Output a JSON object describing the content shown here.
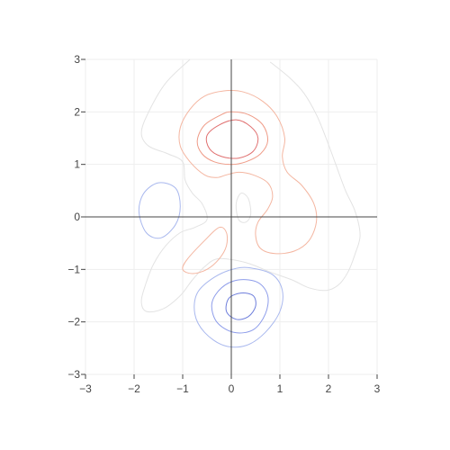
{
  "chart_data": {
    "type": "contour",
    "title": "",
    "xlabel": "",
    "ylabel": "",
    "xlim": [
      -3,
      3
    ],
    "ylim": [
      -3,
      3
    ],
    "grid": true,
    "legend": "none",
    "axes_lines": "zero lines drawn at x=0 and y=0",
    "x_ticks": [
      -3,
      -2,
      -1,
      0,
      1,
      2,
      3
    ],
    "y_ticks": [
      -3,
      -2,
      -1,
      0,
      1,
      2,
      3
    ],
    "x_tick_labels": [
      "−3",
      "−2",
      "−1",
      "0",
      "1",
      "2",
      "3"
    ],
    "y_tick_labels": [
      "−3",
      "−2",
      "−1",
      "0",
      "1",
      "2",
      "3"
    ],
    "contours": [
      {
        "name": "outer-neutral-contour",
        "color": "#e3e3e3",
        "points": [
          [
            -0.85,
            3.0
          ],
          [
            -1.35,
            2.55
          ],
          [
            -1.7,
            2.0
          ],
          [
            -1.85,
            1.6
          ],
          [
            -1.7,
            1.35
          ],
          [
            -1.3,
            1.2
          ],
          [
            -1.0,
            1.05
          ],
          [
            -0.95,
            0.7
          ],
          [
            -0.8,
            0.45
          ],
          [
            -0.6,
            0.25
          ],
          [
            -0.5,
            -0.05
          ],
          [
            -0.75,
            -0.2
          ],
          [
            -1.05,
            -0.3
          ],
          [
            -1.35,
            -0.55
          ],
          [
            -1.6,
            -0.9
          ],
          [
            -1.75,
            -1.25
          ],
          [
            -1.85,
            -1.6
          ],
          [
            -1.75,
            -1.8
          ],
          [
            -1.4,
            -1.75
          ],
          [
            -1.05,
            -1.5
          ],
          [
            -0.8,
            -1.2
          ],
          [
            -0.55,
            -0.95
          ],
          [
            -0.3,
            -0.8
          ],
          [
            0.05,
            -0.82
          ],
          [
            0.4,
            -0.9
          ],
          [
            0.8,
            -1.05
          ],
          [
            1.25,
            -1.2
          ],
          [
            1.6,
            -1.35
          ],
          [
            1.95,
            -1.4
          ],
          [
            2.2,
            -1.3
          ],
          [
            2.4,
            -1.05
          ],
          [
            2.55,
            -0.7
          ],
          [
            2.65,
            -0.35
          ],
          [
            2.55,
            0.1
          ],
          [
            2.35,
            0.5
          ],
          [
            2.15,
            1.0
          ],
          [
            1.95,
            1.5
          ],
          [
            1.75,
            1.95
          ],
          [
            1.5,
            2.35
          ],
          [
            1.2,
            2.65
          ],
          [
            0.8,
            2.95
          ]
        ]
      },
      {
        "name": "positive-contour-low",
        "color": "#f4b6a1",
        "points": [
          [
            -0.55,
            2.3
          ],
          [
            -0.85,
            2.05
          ],
          [
            -1.05,
            1.7
          ],
          [
            -1.05,
            1.35
          ],
          [
            -0.85,
            1.05
          ],
          [
            -0.55,
            0.8
          ],
          [
            -0.3,
            0.75
          ],
          [
            -0.1,
            0.8
          ],
          [
            0.15,
            0.85
          ],
          [
            0.45,
            0.8
          ],
          [
            0.75,
            0.65
          ],
          [
            0.85,
            0.4
          ],
          [
            0.75,
            0.15
          ],
          [
            0.55,
            -0.1
          ],
          [
            0.5,
            -0.35
          ],
          [
            0.6,
            -0.6
          ],
          [
            0.9,
            -0.7
          ],
          [
            1.3,
            -0.65
          ],
          [
            1.6,
            -0.45
          ],
          [
            1.75,
            -0.1
          ],
          [
            1.7,
            0.25
          ],
          [
            1.45,
            0.6
          ],
          [
            1.15,
            0.85
          ],
          [
            1.05,
            1.15
          ],
          [
            1.1,
            1.5
          ],
          [
            0.95,
            1.9
          ],
          [
            0.65,
            2.2
          ],
          [
            0.25,
            2.38
          ],
          [
            -0.15,
            2.4
          ],
          [
            -0.55,
            2.3
          ]
        ]
      },
      {
        "name": "positive-contour-mid",
        "color": "#ef9b87",
        "points": [
          [
            -0.2,
            1.95
          ],
          [
            -0.55,
            1.75
          ],
          [
            -0.7,
            1.45
          ],
          [
            -0.6,
            1.2
          ],
          [
            -0.35,
            1.05
          ],
          [
            0.0,
            1.0
          ],
          [
            0.3,
            1.05
          ],
          [
            0.6,
            1.2
          ],
          [
            0.75,
            1.45
          ],
          [
            0.65,
            1.75
          ],
          [
            0.35,
            1.95
          ],
          [
            0.0,
            2.0
          ],
          [
            -0.2,
            1.95
          ]
        ]
      },
      {
        "name": "positive-contour-high",
        "color": "#e07070",
        "points": [
          [
            -0.25,
            1.75
          ],
          [
            -0.5,
            1.55
          ],
          [
            -0.45,
            1.3
          ],
          [
            -0.2,
            1.15
          ],
          [
            0.15,
            1.12
          ],
          [
            0.45,
            1.25
          ],
          [
            0.55,
            1.5
          ],
          [
            0.4,
            1.72
          ],
          [
            0.1,
            1.85
          ],
          [
            -0.25,
            1.75
          ]
        ]
      },
      {
        "name": "positive-contour-side-lobe",
        "color": "#f4b6a1",
        "points": [
          [
            -0.25,
            -0.2
          ],
          [
            -0.55,
            -0.45
          ],
          [
            -0.9,
            -0.8
          ],
          [
            -1.0,
            -1.0
          ],
          [
            -0.8,
            -1.08
          ],
          [
            -0.5,
            -1.0
          ],
          [
            -0.25,
            -0.8
          ],
          [
            -0.1,
            -0.55
          ],
          [
            -0.1,
            -0.3
          ],
          [
            -0.25,
            -0.2
          ]
        ]
      },
      {
        "name": "neutral-small-loop",
        "color": "#e3e3e3",
        "points": [
          [
            0.1,
            0.25
          ],
          [
            0.2,
            0.45
          ],
          [
            0.35,
            0.35
          ],
          [
            0.4,
            0.05
          ],
          [
            0.3,
            -0.1
          ],
          [
            0.15,
            -0.05
          ],
          [
            0.1,
            0.25
          ]
        ]
      },
      {
        "name": "negative-contour-left",
        "color": "#a9b8ee",
        "points": [
          [
            -1.5,
            0.65
          ],
          [
            -1.8,
            0.45
          ],
          [
            -1.9,
            0.1
          ],
          [
            -1.75,
            -0.3
          ],
          [
            -1.45,
            -0.4
          ],
          [
            -1.15,
            -0.15
          ],
          [
            -1.05,
            0.2
          ],
          [
            -1.15,
            0.55
          ],
          [
            -1.5,
            0.65
          ]
        ]
      },
      {
        "name": "negative-contour-low",
        "color": "#a9b8ee",
        "points": [
          [
            0.1,
            -0.98
          ],
          [
            -0.35,
            -1.15
          ],
          [
            -0.7,
            -1.45
          ],
          [
            -0.75,
            -1.85
          ],
          [
            -0.55,
            -2.2
          ],
          [
            -0.15,
            -2.45
          ],
          [
            0.3,
            -2.45
          ],
          [
            0.7,
            -2.2
          ],
          [
            1.0,
            -1.8
          ],
          [
            1.05,
            -1.4
          ],
          [
            0.85,
            -1.1
          ],
          [
            0.45,
            -0.98
          ],
          [
            0.1,
            -0.98
          ]
        ]
      },
      {
        "name": "negative-contour-mid",
        "color": "#8d9cea",
        "points": [
          [
            0.15,
            -1.2
          ],
          [
            -0.2,
            -1.35
          ],
          [
            -0.4,
            -1.65
          ],
          [
            -0.3,
            -2.0
          ],
          [
            0.05,
            -2.2
          ],
          [
            0.45,
            -2.15
          ],
          [
            0.7,
            -1.85
          ],
          [
            0.75,
            -1.5
          ],
          [
            0.55,
            -1.25
          ],
          [
            0.15,
            -1.2
          ]
        ]
      },
      {
        "name": "negative-contour-high",
        "color": "#6f7fdc",
        "points": [
          [
            0.2,
            -1.45
          ],
          [
            -0.05,
            -1.55
          ],
          [
            -0.1,
            -1.8
          ],
          [
            0.1,
            -1.95
          ],
          [
            0.35,
            -1.9
          ],
          [
            0.5,
            -1.7
          ],
          [
            0.45,
            -1.5
          ],
          [
            0.2,
            -1.45
          ]
        ]
      }
    ]
  },
  "style": {
    "grid_color": "#eeeeee",
    "zero_line_color": "#444444",
    "tick_color": "#444444"
  }
}
